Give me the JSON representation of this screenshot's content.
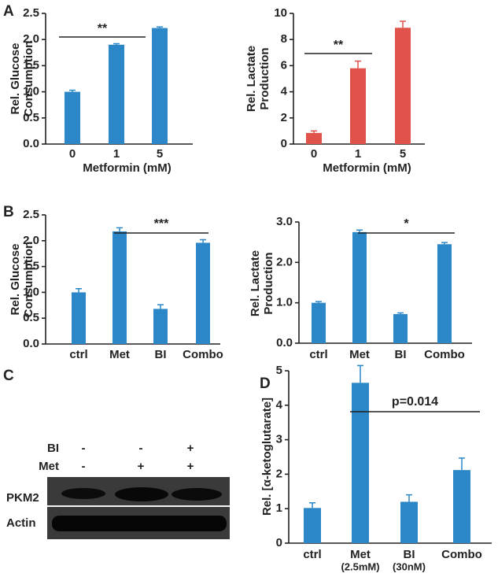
{
  "chart_data": [
    {
      "type": "bar",
      "panel_label": "A",
      "ylabel": [
        "Rel. Glucose",
        "Consumption"
      ],
      "xlabel": "Metformin (mM)",
      "categories": [
        "0",
        "1",
        "5"
      ],
      "values": [
        1.0,
        1.9,
        2.22
      ],
      "error": [
        0.03,
        0.02,
        0.02
      ],
      "color": "#2b87c8",
      "ylim": [
        0,
        2.5
      ],
      "yticks": [
        {
          "value": 0,
          "label": "0.0"
        },
        {
          "value": 0.5,
          "label": "0.5"
        },
        {
          "value": 1,
          "label": "1.0"
        },
        {
          "value": 1.5,
          "label": "1.5"
        },
        {
          "value": 2,
          "label": "2.0"
        },
        {
          "value": 2.5,
          "label": "2.5"
        }
      ],
      "annotation": "**"
    },
    {
      "type": "bar",
      "ylabel": [
        "Rel. Lactate",
        "Production"
      ],
      "xlabel": "Metformin (mM)",
      "categories": [
        "0",
        "1",
        "5"
      ],
      "values": [
        0.85,
        5.8,
        8.9
      ],
      "error": [
        0.15,
        0.55,
        0.5
      ],
      "color": "#e0534a",
      "ylim": [
        0,
        10
      ],
      "yticks": [
        0,
        2,
        4,
        6,
        8,
        10
      ],
      "annotation": "**"
    },
    {
      "type": "bar",
      "panel_label": "B",
      "ylabel": [
        "Rel. Glucose",
        "Consumption"
      ],
      "categories": [
        "ctrl",
        "Met",
        "BI",
        "Combo"
      ],
      "values": [
        1.0,
        2.18,
        0.68,
        1.96
      ],
      "error": [
        0.07,
        0.07,
        0.08,
        0.06
      ],
      "color": "#2b87c8",
      "ylim": [
        0,
        2.5
      ],
      "yticks": [
        {
          "value": 0,
          "label": "0.0"
        },
        {
          "value": 0.5,
          "label": "0.5"
        },
        {
          "value": 1,
          "label": "1.0"
        },
        {
          "value": 1.5,
          "label": "1.5"
        },
        {
          "value": 2,
          "label": "2.0"
        },
        {
          "value": 2.5,
          "label": "2.5"
        }
      ],
      "annotation": "***"
    },
    {
      "type": "bar",
      "ylabel": [
        "Rel. Lactate",
        "Production"
      ],
      "categories": [
        "ctrl",
        "Met",
        "BI",
        "Combo"
      ],
      "values": [
        1.0,
        2.75,
        0.72,
        2.45
      ],
      "error": [
        0.03,
        0.05,
        0.03,
        0.04
      ],
      "color": "#2b87c8",
      "ylim": [
        0,
        3
      ],
      "yticks": [
        {
          "value": 0,
          "label": "0.0"
        },
        {
          "value": 1,
          "label": "1.0"
        },
        {
          "value": 2,
          "label": "2.0"
        },
        {
          "value": 3,
          "label": "3.0"
        }
      ],
      "annotation": "*"
    },
    {
      "type": "bar",
      "panel_label": "D",
      "ylabel": [
        "Rel. [α-ketoglutarate]"
      ],
      "categories": [
        "ctrl",
        "Met",
        "BI",
        "Combo"
      ],
      "category_sublabels": [
        null,
        "(2.5mM)",
        "(30nM)",
        null
      ],
      "values": [
        1.02,
        4.65,
        1.2,
        2.12
      ],
      "error": [
        0.15,
        0.5,
        0.2,
        0.35
      ],
      "color": "#2b87c8",
      "ylim": [
        0,
        5
      ],
      "yticks": [
        0,
        1,
        2,
        3,
        4,
        5
      ],
      "annotation": "p=0.014"
    }
  ],
  "blot": {
    "panel_label": "C",
    "treatments": [
      {
        "name": "BI",
        "signs": [
          "-",
          "-",
          "+"
        ]
      },
      {
        "name": "Met",
        "signs": [
          "-",
          "+",
          "+"
        ]
      }
    ],
    "bands": [
      "PKM2",
      "Actin"
    ]
  }
}
